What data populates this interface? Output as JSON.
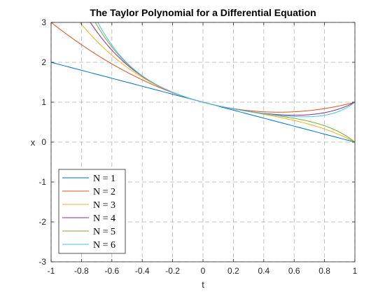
{
  "chart_data": {
    "type": "line",
    "title": "The Taylor Polynomial for a Differential Equation",
    "xlabel": "t",
    "ylabel": "x",
    "xlim": [
      -1,
      1
    ],
    "ylim": [
      -3,
      3
    ],
    "xticks": [
      -1,
      -0.8,
      -0.6,
      -0.4,
      -0.2,
      0,
      0.2,
      0.4,
      0.6,
      0.8,
      1
    ],
    "xtick_labels": [
      "-1",
      "-0.8",
      "-0.6",
      "-0.4",
      "-0.2",
      "0",
      "0.2",
      "0.4",
      "0.6",
      "0.8",
      "1"
    ],
    "yticks": [
      -3,
      -2,
      -1,
      0,
      1,
      2,
      3
    ],
    "ytick_labels": [
      "-3",
      "-2",
      "-1",
      "0",
      "1",
      "2",
      "3"
    ],
    "grid": true,
    "grid_style": "dashed",
    "legend_position": "bottom-left",
    "series": [
      {
        "name": "N = 1",
        "color": "#0072BD",
        "coefficients": [
          1,
          -1
        ]
      },
      {
        "name": "N = 2",
        "color": "#D95319",
        "coefficients": [
          1,
          -1,
          1
        ]
      },
      {
        "name": "N = 3",
        "color": "#EDB120",
        "coefficients": [
          1,
          -1,
          1,
          -1
        ]
      },
      {
        "name": "N = 4",
        "color": "#7E2F8E",
        "coefficients": [
          1,
          -1,
          1,
          -1,
          1
        ]
      },
      {
        "name": "N = 5",
        "color": "#77AC30",
        "coefficients": [
          1,
          -1,
          1,
          -1,
          1,
          -1
        ]
      },
      {
        "name": "N = 6",
        "color": "#4DBEEE",
        "coefficients": [
          1,
          -1,
          1,
          -1,
          1,
          -1,
          1
        ]
      }
    ]
  }
}
